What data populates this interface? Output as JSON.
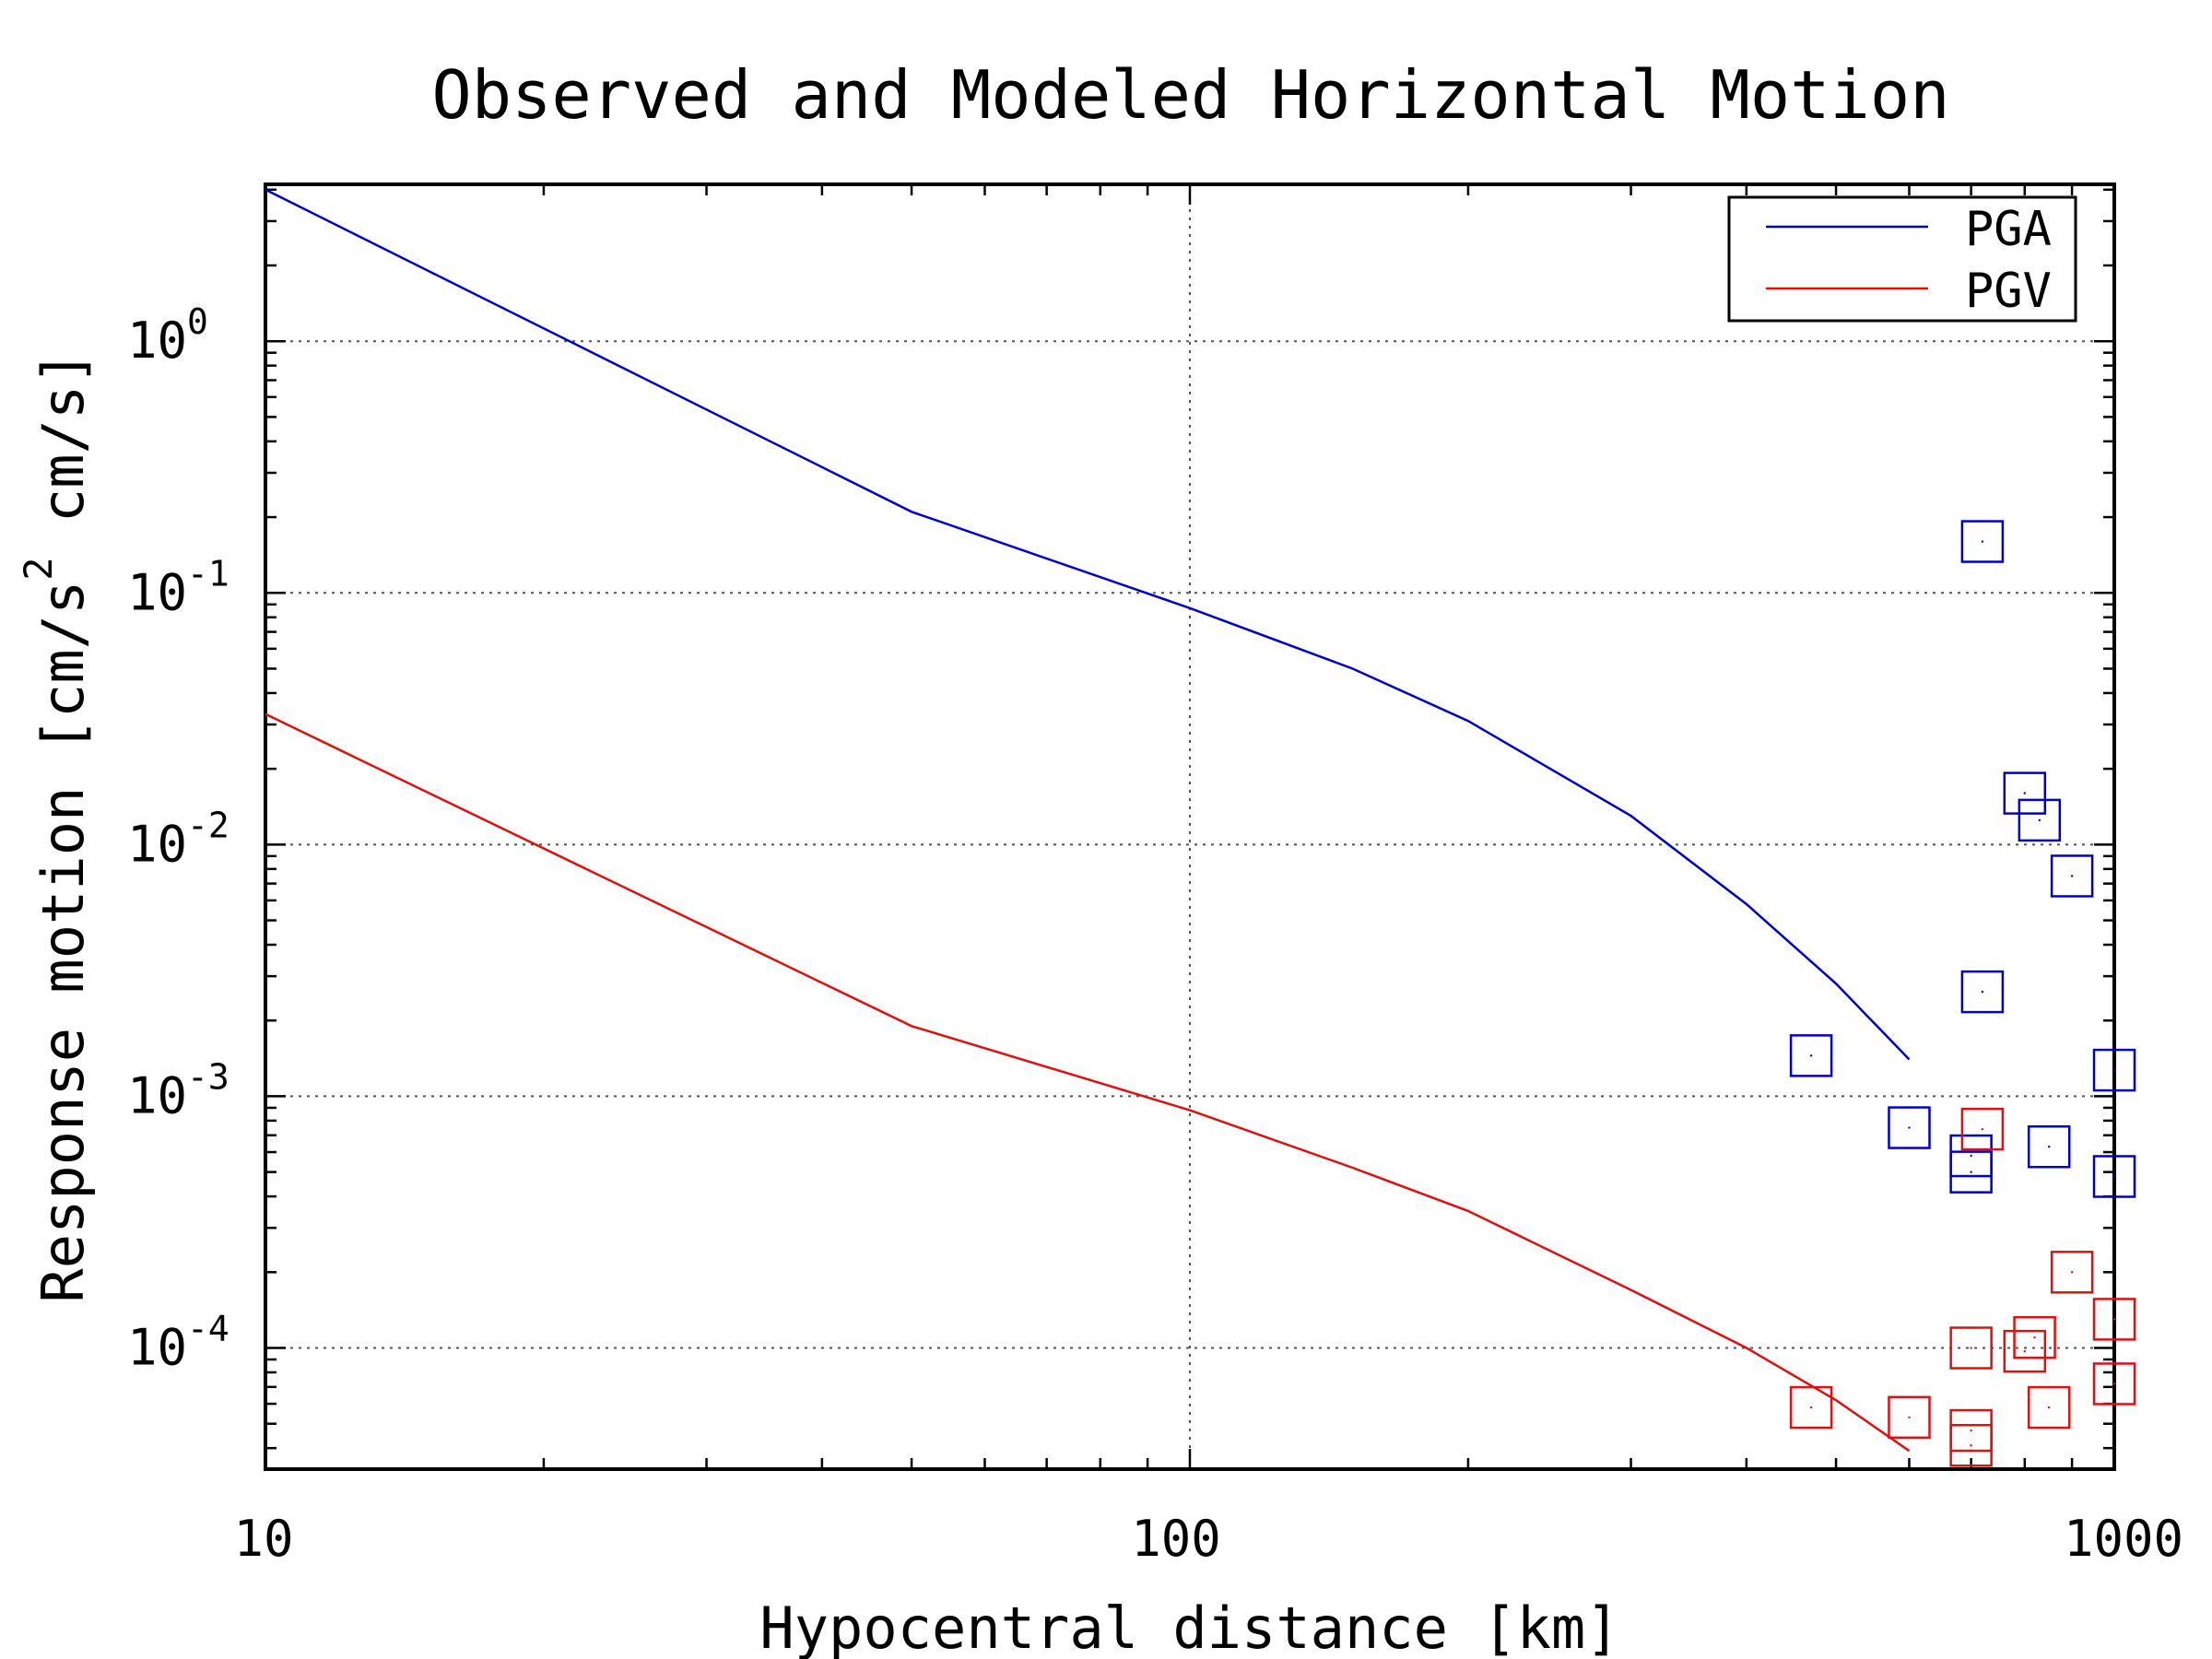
{
  "chart_data": {
    "type": "line",
    "title": "Observed and Modeled Horizontal Motion",
    "xlabel": "Hypocentral distance [km]",
    "ylabel_parts": [
      "Response motion [cm/s",
      "2",
      " cm/s]"
    ],
    "xscale": "log",
    "yscale": "log",
    "xlim": [
      10,
      1000
    ],
    "ylim": [
      3.3e-05,
      4.2
    ],
    "grid": true,
    "legend_position": "top-right",
    "x_ticks": [
      {
        "value": 10,
        "label": "10"
      },
      {
        "value": 100,
        "label": "100"
      },
      {
        "value": 1000,
        "label": "1000"
      }
    ],
    "y_ticks": [
      {
        "value": 1,
        "base": "10",
        "exp": "0"
      },
      {
        "value": 0.1,
        "base": "10",
        "exp": "-1"
      },
      {
        "value": 0.01,
        "base": "10",
        "exp": "-2"
      },
      {
        "value": 0.001,
        "base": "10",
        "exp": "-3"
      },
      {
        "value": 0.0001,
        "base": "10",
        "exp": "-4"
      }
    ],
    "series": [
      {
        "name": "PGA",
        "color": "#0000cc",
        "line": {
          "x": [
            10,
            50,
            100,
            150,
            200,
            300,
            400,
            500,
            600
          ],
          "y": [
            4.0,
            0.21,
            0.087,
            0.05,
            0.031,
            0.013,
            0.0058,
            0.0028,
            0.0014
          ]
        },
        "observed": {
          "x": [
            470,
            600,
            700,
            700,
            720,
            720,
            800,
            830,
            850,
            900,
            1000,
            1000
          ],
          "y": [
            0.00145,
            0.00075,
            0.00058,
            0.0005,
            0.0026,
            0.16,
            0.016,
            0.0125,
            0.00063,
            0.0075,
            0.00127,
            0.00048
          ]
        }
      },
      {
        "name": "PGV",
        "color": "#dd1111",
        "line": {
          "x": [
            10,
            50,
            100,
            150,
            200,
            300,
            400,
            500,
            600
          ],
          "y": [
            0.033,
            0.0019,
            0.00088,
            0.00052,
            0.00035,
            0.00017,
            0.0001,
            6.2e-05,
            3.9e-05
          ]
        },
        "observed": {
          "x": [
            470,
            600,
            700,
            700,
            700,
            720,
            800,
            820,
            850,
            900,
            1000,
            1000
          ],
          "y": [
            5.8e-05,
            5.3e-05,
            0.0001,
            4.7e-05,
            4.1e-05,
            0.00074,
            9.7e-05,
            0.00011,
            5.8e-05,
            0.0002,
            0.00013,
            7.2e-05
          ]
        }
      }
    ]
  }
}
